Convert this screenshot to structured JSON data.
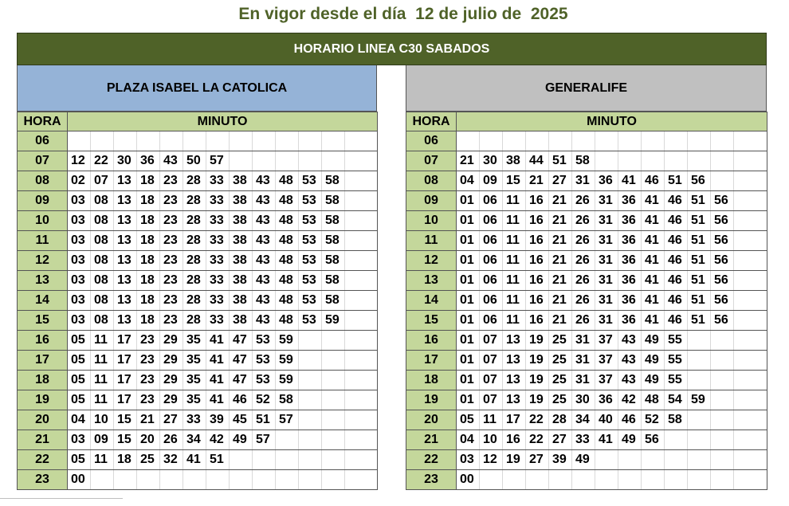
{
  "title": "En vigor desde el día  12 de julio de  2025",
  "header": "HORARIO LINEA  C30 SABADOS",
  "left": {
    "stop": "PLAZA ISABEL LA CATOLICA",
    "col_hour": "HORA",
    "col_minute": "MINUTO",
    "rows": [
      {
        "hour": "06",
        "minutes": []
      },
      {
        "hour": "07",
        "minutes": [
          "12",
          "22",
          "30",
          "36",
          "43",
          "50",
          "57"
        ]
      },
      {
        "hour": "08",
        "minutes": [
          "02",
          "07",
          "13",
          "18",
          "23",
          "28",
          "33",
          "38",
          "43",
          "48",
          "53",
          "58"
        ]
      },
      {
        "hour": "09",
        "minutes": [
          "03",
          "08",
          "13",
          "18",
          "23",
          "28",
          "33",
          "38",
          "43",
          "48",
          "53",
          "58"
        ]
      },
      {
        "hour": "10",
        "minutes": [
          "03",
          "08",
          "13",
          "18",
          "23",
          "28",
          "33",
          "38",
          "43",
          "48",
          "53",
          "58"
        ]
      },
      {
        "hour": "11",
        "minutes": [
          "03",
          "08",
          "13",
          "18",
          "23",
          "28",
          "33",
          "38",
          "43",
          "48",
          "53",
          "58"
        ]
      },
      {
        "hour": "12",
        "minutes": [
          "03",
          "08",
          "13",
          "18",
          "23",
          "28",
          "33",
          "38",
          "43",
          "48",
          "53",
          "58"
        ]
      },
      {
        "hour": "13",
        "minutes": [
          "03",
          "08",
          "13",
          "18",
          "23",
          "28",
          "33",
          "38",
          "43",
          "48",
          "53",
          "58"
        ]
      },
      {
        "hour": "14",
        "minutes": [
          "03",
          "08",
          "13",
          "18",
          "23",
          "28",
          "33",
          "38",
          "43",
          "48",
          "53",
          "58"
        ]
      },
      {
        "hour": "15",
        "minutes": [
          "03",
          "08",
          "13",
          "18",
          "23",
          "28",
          "33",
          "38",
          "43",
          "48",
          "53",
          "59"
        ]
      },
      {
        "hour": "16",
        "minutes": [
          "05",
          "11",
          "17",
          "23",
          "29",
          "35",
          "41",
          "47",
          "53",
          "59"
        ]
      },
      {
        "hour": "17",
        "minutes": [
          "05",
          "11",
          "17",
          "23",
          "29",
          "35",
          "41",
          "47",
          "53",
          "59"
        ]
      },
      {
        "hour": "18",
        "minutes": [
          "05",
          "11",
          "17",
          "23",
          "29",
          "35",
          "41",
          "47",
          "53",
          "59"
        ]
      },
      {
        "hour": "19",
        "minutes": [
          "05",
          "11",
          "17",
          "23",
          "29",
          "35",
          "41",
          "46",
          "52",
          "58"
        ]
      },
      {
        "hour": "20",
        "minutes": [
          "04",
          "10",
          "15",
          "21",
          "27",
          "33",
          "39",
          "45",
          "51",
          "57"
        ]
      },
      {
        "hour": "21",
        "minutes": [
          "03",
          "09",
          "15",
          "20",
          "26",
          "34",
          "42",
          "49",
          "57"
        ]
      },
      {
        "hour": "22",
        "minutes": [
          "05",
          "11",
          "18",
          "25",
          "32",
          "41",
          "51"
        ]
      },
      {
        "hour": "23",
        "minutes": [
          "00"
        ]
      }
    ]
  },
  "right": {
    "stop": "GENERALIFE",
    "col_hour": "HORA",
    "col_minute": "MINUTO",
    "rows": [
      {
        "hour": "06",
        "minutes": []
      },
      {
        "hour": "07",
        "minutes": [
          "21",
          "30",
          "38",
          "44",
          "51",
          "58"
        ]
      },
      {
        "hour": "08",
        "minutes": [
          "04",
          "09",
          "15",
          "21",
          "27",
          "31",
          "36",
          "41",
          "46",
          "51",
          "56"
        ]
      },
      {
        "hour": "09",
        "minutes": [
          "01",
          "06",
          "11",
          "16",
          "21",
          "26",
          "31",
          "36",
          "41",
          "46",
          "51",
          "56"
        ]
      },
      {
        "hour": "10",
        "minutes": [
          "01",
          "06",
          "11",
          "16",
          "21",
          "26",
          "31",
          "36",
          "41",
          "46",
          "51",
          "56"
        ]
      },
      {
        "hour": "11",
        "minutes": [
          "01",
          "06",
          "11",
          "16",
          "21",
          "26",
          "31",
          "36",
          "41",
          "46",
          "51",
          "56"
        ]
      },
      {
        "hour": "12",
        "minutes": [
          "01",
          "06",
          "11",
          "16",
          "21",
          "26",
          "31",
          "36",
          "41",
          "46",
          "51",
          "56"
        ]
      },
      {
        "hour": "13",
        "minutes": [
          "01",
          "06",
          "11",
          "16",
          "21",
          "26",
          "31",
          "36",
          "41",
          "46",
          "51",
          "56"
        ]
      },
      {
        "hour": "14",
        "minutes": [
          "01",
          "06",
          "11",
          "16",
          "21",
          "26",
          "31",
          "36",
          "41",
          "46",
          "51",
          "56"
        ]
      },
      {
        "hour": "15",
        "minutes": [
          "01",
          "06",
          "11",
          "16",
          "21",
          "26",
          "31",
          "36",
          "41",
          "46",
          "51",
          "56"
        ]
      },
      {
        "hour": "16",
        "minutes": [
          "01",
          "07",
          "13",
          "19",
          "25",
          "31",
          "37",
          "43",
          "49",
          "55"
        ]
      },
      {
        "hour": "17",
        "minutes": [
          "01",
          "07",
          "13",
          "19",
          "25",
          "31",
          "37",
          "43",
          "49",
          "55"
        ]
      },
      {
        "hour": "18",
        "minutes": [
          "01",
          "07",
          "13",
          "19",
          "25",
          "31",
          "37",
          "43",
          "49",
          "55"
        ]
      },
      {
        "hour": "19",
        "minutes": [
          "01",
          "07",
          "13",
          "19",
          "25",
          "30",
          "36",
          "42",
          "48",
          "54",
          "59"
        ]
      },
      {
        "hour": "20",
        "minutes": [
          "05",
          "11",
          "17",
          "22",
          "28",
          "34",
          "40",
          "46",
          "52",
          "58"
        ]
      },
      {
        "hour": "21",
        "minutes": [
          "04",
          "10",
          "16",
          "22",
          "27",
          "33",
          "41",
          "49",
          "56"
        ]
      },
      {
        "hour": "22",
        "minutes": [
          "03",
          "12",
          "19",
          "27",
          "39",
          "49"
        ]
      },
      {
        "hour": "23",
        "minutes": [
          "00"
        ]
      }
    ]
  },
  "colors": {
    "header_bg": "#4f6228",
    "left_stop_bg": "#95b3d7",
    "right_stop_bg": "#c0c0c0",
    "hour_bg": "#c4d79b"
  }
}
